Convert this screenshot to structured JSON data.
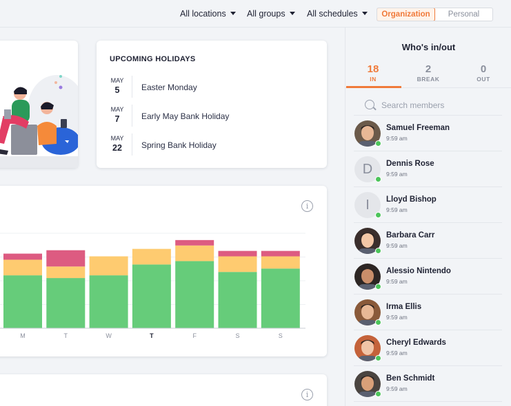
{
  "filters": {
    "locations": "All locations",
    "groups": "All groups",
    "schedules": "All schedules"
  },
  "view_toggle": {
    "organization": "Organization",
    "personal": "Personal",
    "selected": "Organization"
  },
  "holidays": {
    "title": "UPCOMING HOLIDAYS",
    "items": [
      {
        "month": "MAY",
        "day": "5",
        "name": "Easter Monday"
      },
      {
        "month": "MAY",
        "day": "7",
        "name": "Early May Bank Holiday"
      },
      {
        "month": "MAY",
        "day": "22",
        "name": "Spring Bank Holiday"
      }
    ]
  },
  "chart_data": {
    "type": "bar",
    "stacked": true,
    "categories": [
      "M",
      "T",
      "W",
      "T",
      "F",
      "S",
      "S"
    ],
    "highlighted_category_index": 3,
    "series": [
      {
        "color": "#66cc7a",
        "values": [
          78,
          74,
          78,
          94,
          99,
          83,
          88
        ]
      },
      {
        "color": "#fecb70",
        "values": [
          23,
          17,
          28,
          23,
          23,
          23,
          18
        ]
      },
      {
        "color": "#dd5b81",
        "values": [
          9,
          24,
          0,
          0,
          8,
          8,
          8
        ]
      }
    ],
    "ylim": [
      0,
      140
    ],
    "grid": true
  },
  "whos_in": {
    "title": "Who's in/out",
    "stats": [
      {
        "count": "18",
        "label": "IN"
      },
      {
        "count": "2",
        "label": "BREAK"
      },
      {
        "count": "0",
        "label": "OUT"
      }
    ],
    "search_placeholder": "Search members",
    "members": [
      {
        "name": "Samuel Freeman",
        "time": "9:59 am",
        "avatar": "photo",
        "tone": "#6b5a4a"
      },
      {
        "name": "Dennis Rose",
        "time": "9:59 am",
        "avatar": "initial",
        "initial": "D"
      },
      {
        "name": "Lloyd Bishop",
        "time": "9:59 am",
        "avatar": "initial",
        "initial": "I"
      },
      {
        "name": "Barbara Carr",
        "time": "9:59 am",
        "avatar": "photo",
        "tone": "#3a2e2c"
      },
      {
        "name": "Alessio Nintendo",
        "time": "9:59 am",
        "avatar": "photo",
        "tone": "#2d2624"
      },
      {
        "name": "Irma Ellis",
        "time": "9:59 am",
        "avatar": "photo",
        "tone": "#8a5a3a"
      },
      {
        "name": "Cheryl Edwards",
        "time": "9:59 am",
        "avatar": "photo",
        "tone": "#c4623a"
      },
      {
        "name": "Ben Schmidt",
        "time": "9:59 am",
        "avatar": "photo",
        "tone": "#4a4440"
      }
    ]
  },
  "colors": {
    "accent": "#f07a3a",
    "online": "#4cc45a"
  }
}
